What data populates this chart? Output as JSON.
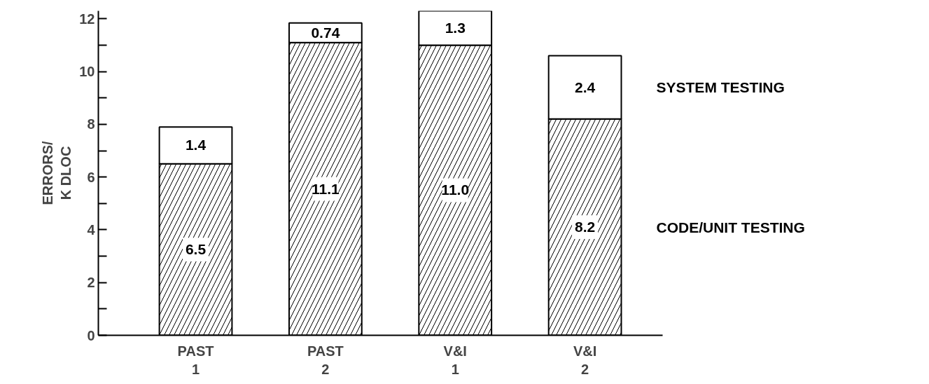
{
  "chart_data": {
    "type": "bar",
    "stacked": true,
    "ylabel": "ERRORS/\nK DLOC",
    "categories": [
      "PAST\n1",
      "PAST\n2",
      "V&I\n1",
      "V&I\n2"
    ],
    "series": [
      {
        "name": "CODE/UNIT TESTING",
        "color": "#ffffff",
        "values": [
          6.5,
          11.1,
          11.0,
          8.2
        ],
        "value_labels": [
          "6.5",
          "11.1",
          "11.0",
          "8.2"
        ]
      },
      {
        "name": "SYSTEM TESTING",
        "color": "#ffffff",
        "values": [
          1.4,
          0.74,
          1.3,
          2.4
        ],
        "value_labels": [
          "1.4",
          "0.74",
          "1.3",
          "2.4"
        ]
      }
    ],
    "ylim": [
      0,
      12.3
    ],
    "yticks": [
      0,
      2,
      4,
      6,
      8,
      10,
      12
    ]
  }
}
